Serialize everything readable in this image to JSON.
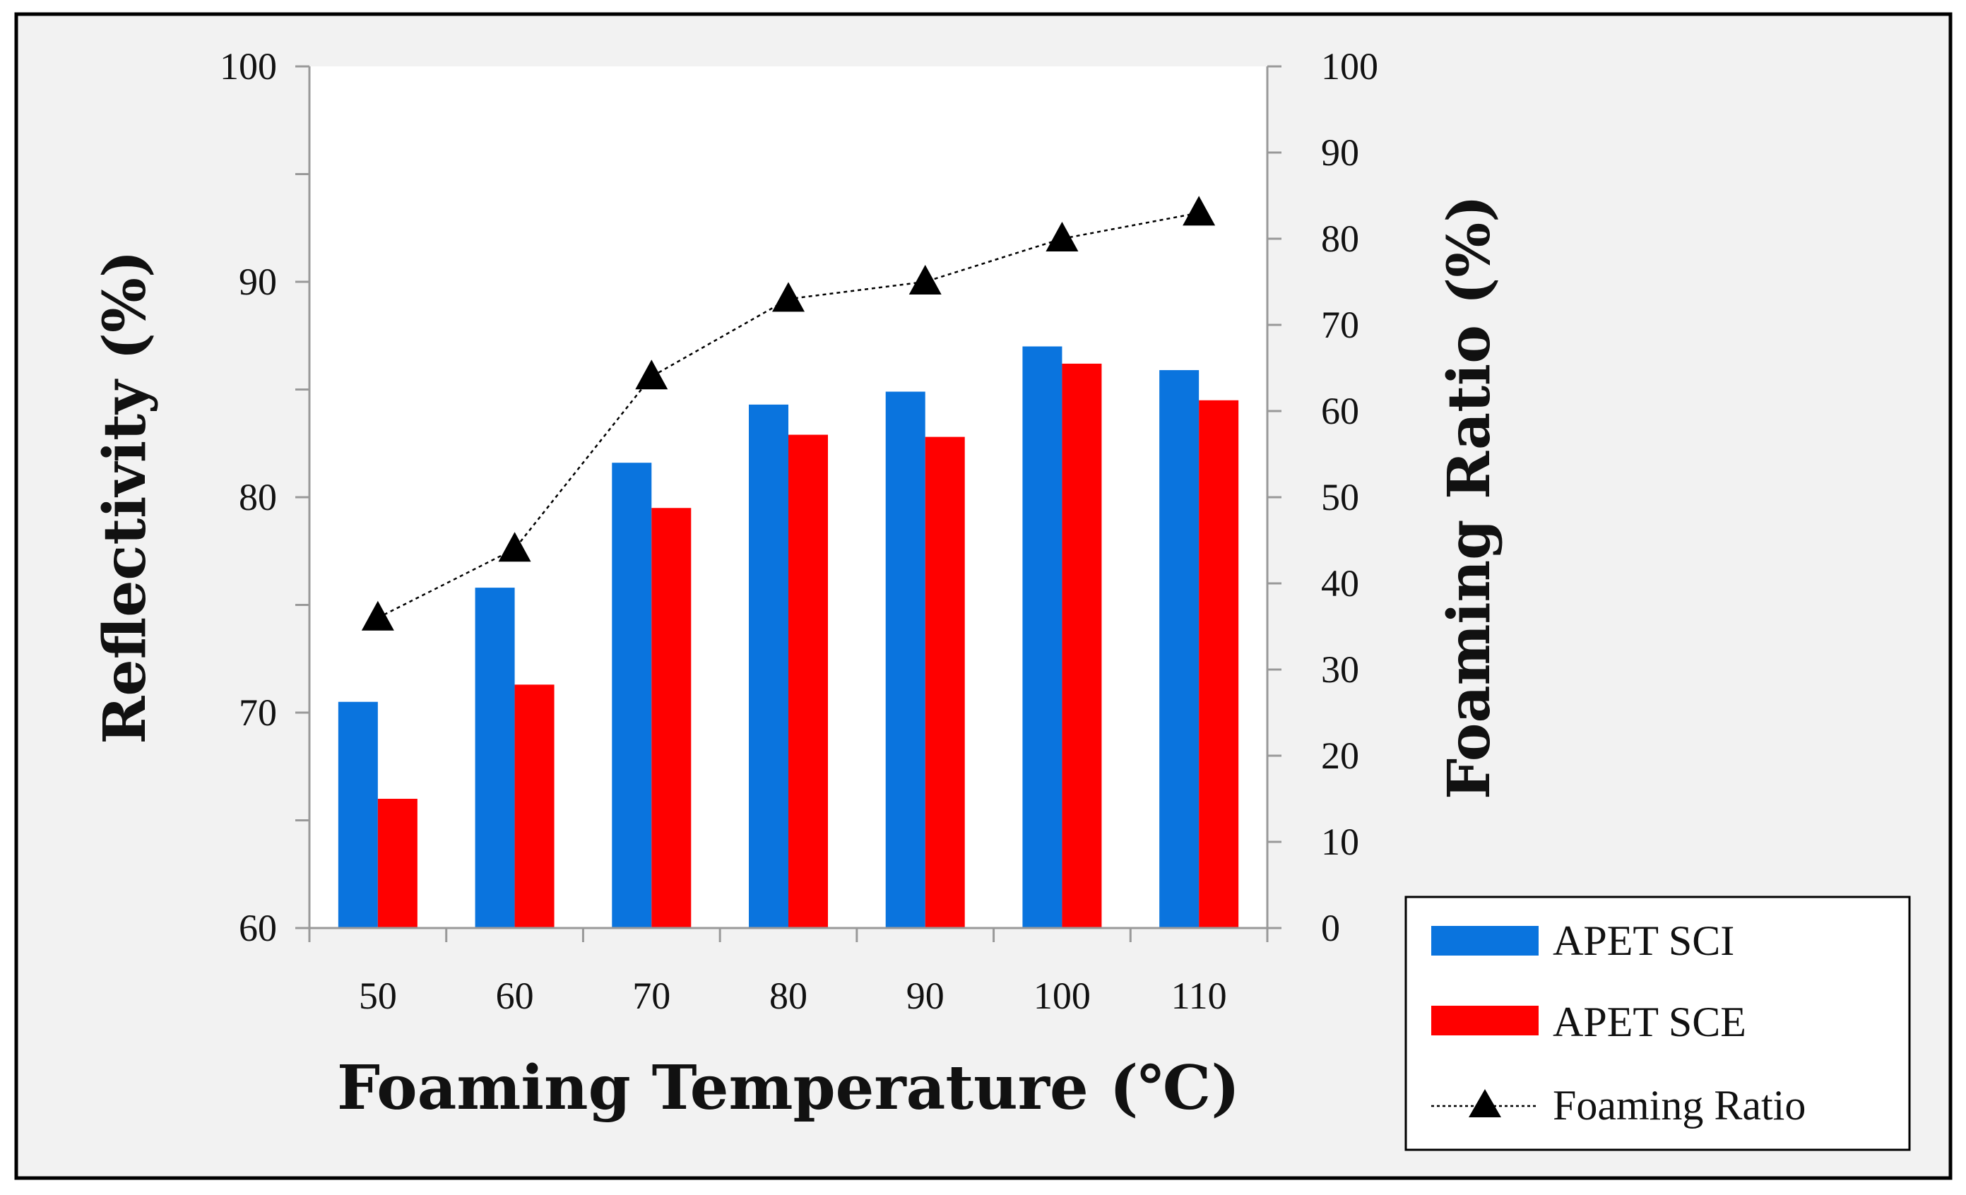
{
  "chart_data": {
    "type": "bar",
    "xlabel": "Foaming Temperature (℃)",
    "ylabel": "Reflectivity (%)",
    "y2label": "Foaming Ratio (%)",
    "categories": [
      "50",
      "60",
      "70",
      "80",
      "90",
      "100",
      "110"
    ],
    "ylim": [
      60,
      100
    ],
    "y_ticks": [
      "60",
      "70",
      "80",
      "90",
      "100"
    ],
    "y2lim": [
      0,
      100
    ],
    "y2_ticks": [
      "0",
      "10",
      "20",
      "30",
      "40",
      "50",
      "60",
      "70",
      "80",
      "90",
      "100"
    ],
    "series": [
      {
        "name": "APET SCI",
        "type": "bar",
        "axis": "left",
        "color": "#0a74de",
        "values": [
          70.5,
          75.8,
          81.6,
          84.3,
          84.9,
          87.0,
          85.9
        ]
      },
      {
        "name": "APET SCE",
        "type": "bar",
        "axis": "left",
        "color": "#ff0000",
        "values": [
          66.0,
          71.3,
          79.5,
          82.9,
          82.8,
          86.2,
          84.5
        ]
      },
      {
        "name": "Foaming Ratio",
        "type": "line",
        "axis": "right",
        "color": "#000000",
        "marker": "triangle",
        "line_style": "dotted",
        "values": [
          36,
          44,
          64,
          73,
          75,
          80,
          83
        ]
      }
    ],
    "legend_position": "bottom-right",
    "grid": false
  }
}
